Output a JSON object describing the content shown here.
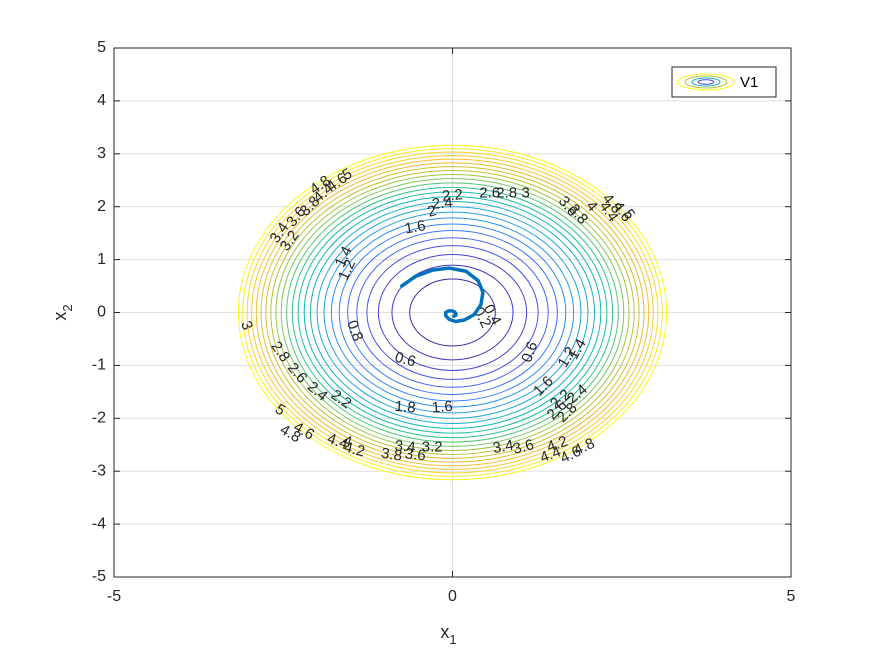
{
  "chart_data": {
    "type": "contour",
    "title": "",
    "xlabel": "x",
    "xlabel_sub": "1",
    "ylabel": "x",
    "ylabel_sub": "2",
    "xlim": [
      -5,
      5
    ],
    "ylim": [
      -5,
      5
    ],
    "xticks": [
      "-5",
      "0",
      "5"
    ],
    "yticks": [
      "-5",
      "-4",
      "-3",
      "-2",
      "-1",
      "0",
      "1",
      "2",
      "3",
      "4",
      "5"
    ],
    "grid": true,
    "legend": {
      "location": "top-right",
      "entries": [
        "V1"
      ]
    },
    "contour_function": "V1(x1,x2) = 0.5*x1^2 + 0.5*x2^2 (elliptical level sets)",
    "contour_levels": [
      0.2,
      0.4,
      0.6,
      0.8,
      1.0,
      1.2,
      1.4,
      1.6,
      1.8,
      2.0,
      2.2,
      2.4,
      2.6,
      2.8,
      3.0,
      3.2,
      3.4,
      3.6,
      3.8,
      4.0,
      4.2,
      4.4,
      4.6,
      4.8,
      5.0
    ],
    "contour_labels": [
      {
        "text": "0.4",
        "x": 0.58,
        "y": -0.05,
        "rot": 62
      },
      {
        "text": "0.2",
        "x": 0.43,
        "y": -0.1,
        "rot": 62
      },
      {
        "text": "0.6",
        "x": -0.7,
        "y": -0.9,
        "rot": 15
      },
      {
        "text": "0.8",
        "x": -1.45,
        "y": -0.35,
        "rot": 70
      },
      {
        "text": "0.6",
        "x": 1.15,
        "y": -0.75,
        "rot": -70
      },
      {
        "text": "1.2",
        "x": 1.7,
        "y": -0.85,
        "rot": -60
      },
      {
        "text": "1.4",
        "x": 1.85,
        "y": -0.7,
        "rot": -60
      },
      {
        "text": "1.4",
        "x": -1.6,
        "y": 1.05,
        "rot": -65
      },
      {
        "text": "1.2",
        "x": -1.55,
        "y": 0.8,
        "rot": -65
      },
      {
        "text": "1.6",
        "x": -0.55,
        "y": 1.6,
        "rot": -10
      },
      {
        "text": "1.8",
        "x": -0.7,
        "y": -1.8,
        "rot": 5
      },
      {
        "text": "1.6",
        "x": -0.15,
        "y": -1.8,
        "rot": -5
      },
      {
        "text": "1.6",
        "x": 1.35,
        "y": -1.4,
        "rot": -45
      },
      {
        "text": "2",
        "x": -0.3,
        "y": 1.9,
        "rot": -15
      },
      {
        "text": "2.2",
        "x": 0.0,
        "y": 2.2,
        "rot": -5
      },
      {
        "text": "2.4",
        "x": -0.15,
        "y": 2.05,
        "rot": -5
      },
      {
        "text": "2.6",
        "x": 0.55,
        "y": 2.25,
        "rot": 0
      },
      {
        "text": "2.8",
        "x": 0.8,
        "y": 2.25,
        "rot": 0
      },
      {
        "text": "3",
        "x": 1.08,
        "y": 2.25,
        "rot": 0
      },
      {
        "text": "2.2",
        "x": -1.65,
        "y": -1.65,
        "rot": 35
      },
      {
        "text": "2.4",
        "x": -2.0,
        "y": -1.5,
        "rot": 40
      },
      {
        "text": "2.6",
        "x": -2.3,
        "y": -1.15,
        "rot": 50
      },
      {
        "text": "2.8",
        "x": -2.55,
        "y": -0.75,
        "rot": 55
      },
      {
        "text": "3",
        "x": -3.05,
        "y": -0.25,
        "rot": 70
      },
      {
        "text": "3.2",
        "x": -2.4,
        "y": 1.35,
        "rot": -55
      },
      {
        "text": "3.4",
        "x": -2.55,
        "y": 1.5,
        "rot": -55
      },
      {
        "text": "3.6",
        "x": -2.3,
        "y": 1.8,
        "rot": -50
      },
      {
        "text": "3.8",
        "x": -2.1,
        "y": 2.0,
        "rot": -45
      },
      {
        "text": "4.4",
        "x": -1.9,
        "y": 2.25,
        "rot": -40
      },
      {
        "text": "4.6",
        "x": -1.7,
        "y": 2.45,
        "rot": -35
      },
      {
        "text": "4.8",
        "x": -1.95,
        "y": 2.4,
        "rot": -35
      },
      {
        "text": "5",
        "x": -1.55,
        "y": 2.6,
        "rot": -30
      },
      {
        "text": "3.6",
        "x": 1.7,
        "y": 2.0,
        "rot": 50
      },
      {
        "text": "3.8",
        "x": 1.85,
        "y": 1.85,
        "rot": 50
      },
      {
        "text": "4",
        "x": 2.05,
        "y": 2.0,
        "rot": 50
      },
      {
        "text": "4.4",
        "x": 2.3,
        "y": 1.9,
        "rot": 55
      },
      {
        "text": "4.6",
        "x": 2.5,
        "y": 1.9,
        "rot": 55
      },
      {
        "text": "4.8",
        "x": 2.35,
        "y": 2.05,
        "rot": 50
      },
      {
        "text": "5",
        "x": 2.6,
        "y": 1.85,
        "rot": 55
      },
      {
        "text": "5",
        "x": -2.55,
        "y": -1.85,
        "rot": 35
      },
      {
        "text": "4.6",
        "x": -2.2,
        "y": -2.25,
        "rot": 30
      },
      {
        "text": "4.8",
        "x": -2.4,
        "y": -2.3,
        "rot": 30
      },
      {
        "text": "4.4",
        "x": -1.7,
        "y": -2.45,
        "rot": 20
      },
      {
        "text": "4.2",
        "x": -1.45,
        "y": -2.6,
        "rot": 15
      },
      {
        "text": "4",
        "x": -1.55,
        "y": -2.45,
        "rot": 15
      },
      {
        "text": "3.8",
        "x": -0.9,
        "y": -2.7,
        "rot": 8
      },
      {
        "text": "3.6",
        "x": -0.55,
        "y": -2.7,
        "rot": 5
      },
      {
        "text": "3.4",
        "x": -0.7,
        "y": -2.55,
        "rot": 5
      },
      {
        "text": "3.2",
        "x": -0.3,
        "y": -2.55,
        "rot": 0
      },
      {
        "text": "3.4",
        "x": 0.75,
        "y": -2.55,
        "rot": -10
      },
      {
        "text": "3.6",
        "x": 1.05,
        "y": -2.55,
        "rot": -15
      },
      {
        "text": "4.2",
        "x": 1.55,
        "y": -2.5,
        "rot": -20
      },
      {
        "text": "4.4",
        "x": 1.45,
        "y": -2.7,
        "rot": -20
      },
      {
        "text": "4.6",
        "x": 1.75,
        "y": -2.7,
        "rot": -25
      },
      {
        "text": "4.8",
        "x": 1.95,
        "y": -2.55,
        "rot": -25
      },
      {
        "text": "2.2",
        "x": 1.6,
        "y": -1.65,
        "rot": -40
      },
      {
        "text": "2.4",
        "x": 1.85,
        "y": -1.55,
        "rot": -40
      },
      {
        "text": "2.6",
        "x": 1.55,
        "y": -1.85,
        "rot": -45
      },
      {
        "text": "2.8",
        "x": 1.7,
        "y": -1.9,
        "rot": -45
      }
    ],
    "trajectory": {
      "description": "spiral trajectory converging toward origin",
      "x": [
        -0.75,
        -0.55,
        -0.3,
        -0.05,
        0.2,
        0.38,
        0.45,
        0.42,
        0.32,
        0.18,
        0.05,
        -0.05,
        -0.1,
        -0.1,
        -0.06,
        -0.01,
        0.03,
        0.05,
        0.05,
        0.02
      ],
      "y": [
        0.5,
        0.68,
        0.8,
        0.84,
        0.78,
        0.6,
        0.38,
        0.15,
        -0.04,
        -0.14,
        -0.17,
        -0.13,
        -0.06,
        0.0,
        0.03,
        0.03,
        0.01,
        -0.02,
        -0.05,
        -0.07
      ]
    },
    "colors": {
      "trajectory": "#0072bd",
      "axes": "#262626",
      "grid": "#dfdfdf",
      "colormap": [
        "#3e26a8",
        "#4745e0",
        "#4367fd",
        "#2d8cf5",
        "#1fa7da",
        "#0cb9b4",
        "#2ec485",
        "#84ca55",
        "#c8c129",
        "#f4ba2c",
        "#fbd329",
        "#f9fb14"
      ]
    }
  }
}
